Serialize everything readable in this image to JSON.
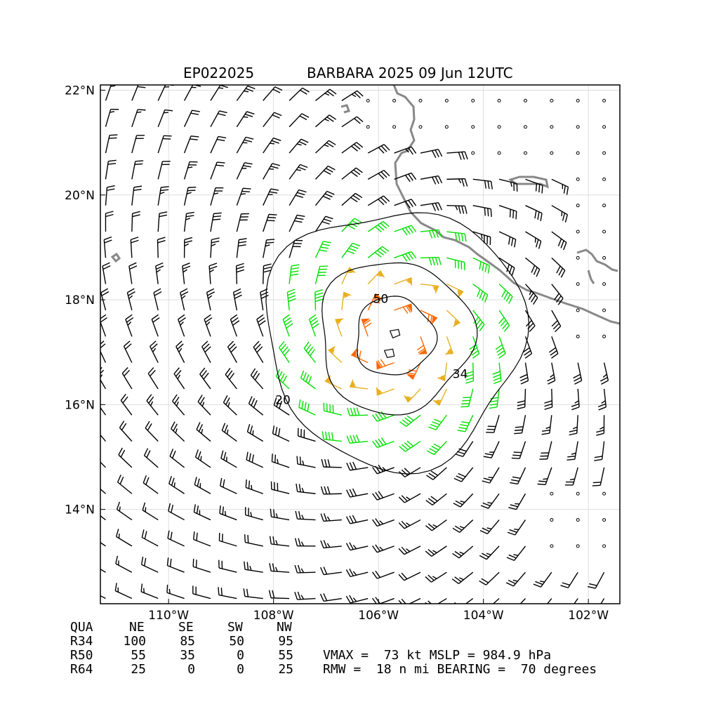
{
  "header": {
    "storm_id": "EP022025",
    "storm_title": "BARBARA 2025 09 Jun 12UTC"
  },
  "map": {
    "lat_range": [
      12.2,
      22.1
    ],
    "lon_range": [
      -111.3,
      -101.4
    ],
    "lat_ticks": [
      {
        "value": 22,
        "label": "22°N"
      },
      {
        "value": 20,
        "label": "20°N"
      },
      {
        "value": 18,
        "label": "18°N"
      },
      {
        "value": 16,
        "label": "16°N"
      },
      {
        "value": 14,
        "label": "14°N"
      }
    ],
    "lon_ticks": [
      {
        "value": -110,
        "label": "110°W"
      },
      {
        "value": -108,
        "label": "108°W"
      },
      {
        "value": -106,
        "label": "106°W"
      },
      {
        "value": -104,
        "label": "104°W"
      },
      {
        "value": -102,
        "label": "102°W"
      }
    ],
    "grid": true,
    "storm_center": {
      "lat": 17.3,
      "lon": -105.7
    },
    "contours": [
      {
        "level": 20,
        "label": "20",
        "radius_deg": 2.45
      },
      {
        "level": 34,
        "label": "34",
        "radius_deg": 1.45
      },
      {
        "level": 50,
        "label": "50",
        "radius_deg": 0.75
      }
    ],
    "wind_colors": {
      "calm": "#000000",
      "below_34": "#000000",
      "r34": "#00e000",
      "r50": "#e8b020",
      "r64": "#ff6600"
    },
    "coastline_color": "#888888"
  },
  "radii_table": {
    "headers": [
      "QUA",
      "NE",
      "SE",
      "SW",
      "NW"
    ],
    "rows": [
      {
        "label": "R34",
        "values": [
          "100",
          "85",
          "50",
          "95"
        ]
      },
      {
        "label": "R50",
        "values": [
          "55",
          "35",
          "0",
          "55"
        ]
      },
      {
        "label": "R64",
        "values": [
          "25",
          "0",
          "0",
          "25"
        ]
      }
    ]
  },
  "stats": {
    "line1": "VMAX =  73 kt MSLP = 984.9 hPa",
    "line2": "RMW =  18 n mi BEARING =  70 degrees"
  }
}
